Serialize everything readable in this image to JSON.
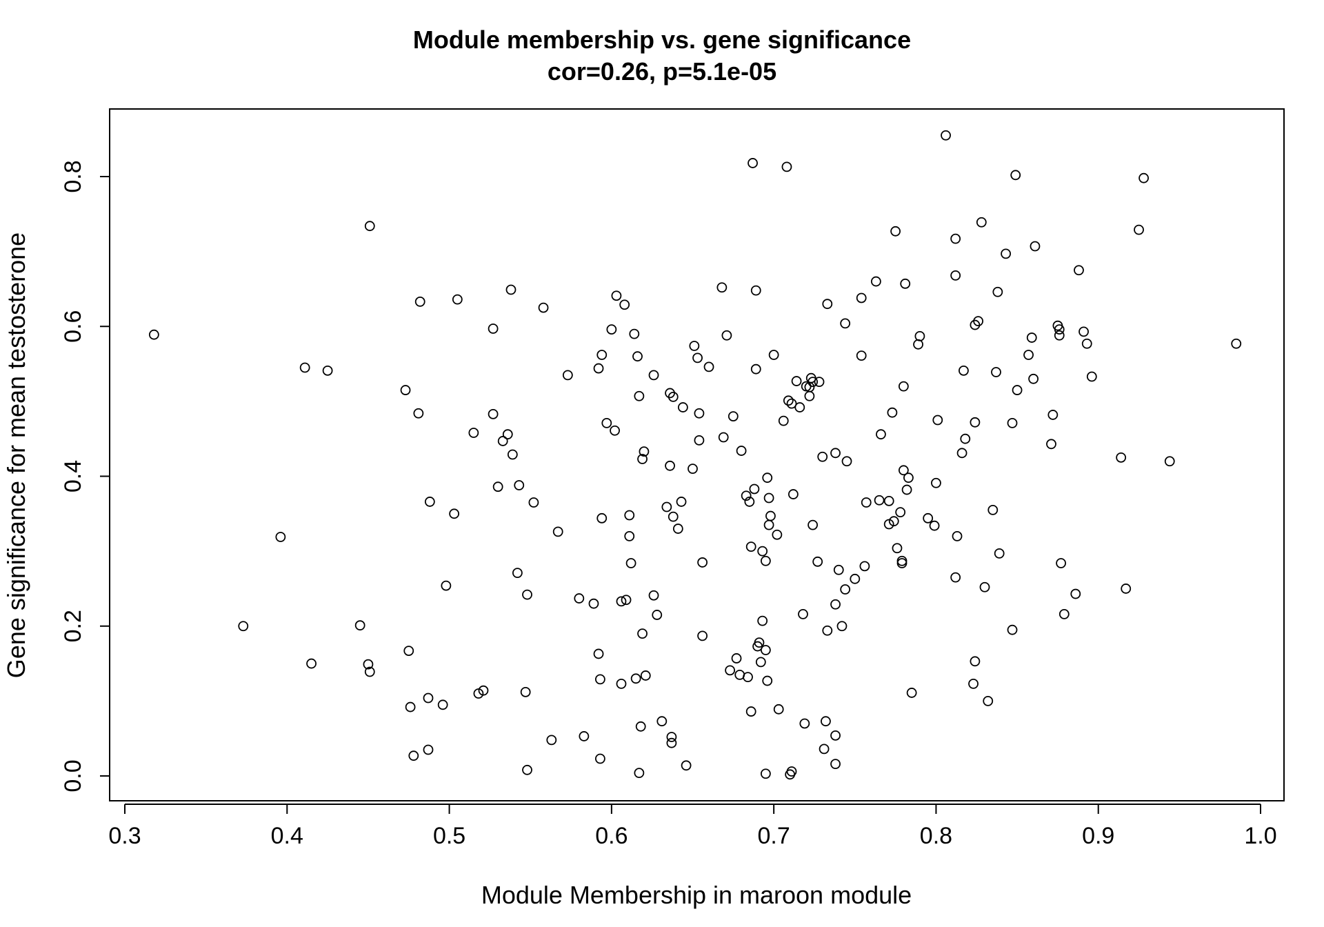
{
  "chart_data": {
    "type": "scatter",
    "title": "Module membership vs. gene significance",
    "subtitle": "cor=0.26, p=5.1e-05",
    "xlabel": "Module Membership in maroon module",
    "ylabel": "Gene significance for mean testosterone",
    "xlim": [
      0.3,
      1.0
    ],
    "ylim": [
      0.0,
      0.8
    ],
    "x_ticks": [
      "0.3",
      "0.4",
      "0.5",
      "0.6",
      "0.7",
      "0.8",
      "0.9",
      "1.0"
    ],
    "y_ticks": [
      "0.0",
      "0.2",
      "0.4",
      "0.6",
      "0.8"
    ],
    "grid": false,
    "marker": "open-circle",
    "points": [
      [
        0.318,
        0.589
      ],
      [
        0.373,
        0.2
      ],
      [
        0.396,
        0.319
      ],
      [
        0.411,
        0.545
      ],
      [
        0.415,
        0.15
      ],
      [
        0.425,
        0.541
      ],
      [
        0.445,
        0.201
      ],
      [
        0.45,
        0.149
      ],
      [
        0.451,
        0.139
      ],
      [
        0.451,
        0.734
      ],
      [
        0.473,
        0.515
      ],
      [
        0.475,
        0.167
      ],
      [
        0.476,
        0.092
      ],
      [
        0.478,
        0.027
      ],
      [
        0.481,
        0.484
      ],
      [
        0.482,
        0.633
      ],
      [
        0.487,
        0.104
      ],
      [
        0.487,
        0.035
      ],
      [
        0.488,
        0.366
      ],
      [
        0.496,
        0.095
      ],
      [
        0.498,
        0.254
      ],
      [
        0.503,
        0.35
      ],
      [
        0.505,
        0.636
      ],
      [
        0.515,
        0.458
      ],
      [
        0.518,
        0.11
      ],
      [
        0.521,
        0.114
      ],
      [
        0.527,
        0.483
      ],
      [
        0.527,
        0.597
      ],
      [
        0.53,
        0.386
      ],
      [
        0.533,
        0.447
      ],
      [
        0.536,
        0.456
      ],
      [
        0.538,
        0.649
      ],
      [
        0.539,
        0.429
      ],
      [
        0.542,
        0.271
      ],
      [
        0.543,
        0.388
      ],
      [
        0.547,
        0.112
      ],
      [
        0.548,
        0.008
      ],
      [
        0.548,
        0.242
      ],
      [
        0.552,
        0.365
      ],
      [
        0.558,
        0.625
      ],
      [
        0.563,
        0.048
      ],
      [
        0.567,
        0.326
      ],
      [
        0.573,
        0.535
      ],
      [
        0.58,
        0.237
      ],
      [
        0.583,
        0.053
      ],
      [
        0.589,
        0.23
      ],
      [
        0.592,
        0.544
      ],
      [
        0.592,
        0.163
      ],
      [
        0.593,
        0.023
      ],
      [
        0.593,
        0.129
      ],
      [
        0.594,
        0.562
      ],
      [
        0.594,
        0.344
      ],
      [
        0.597,
        0.471
      ],
      [
        0.6,
        0.596
      ],
      [
        0.602,
        0.461
      ],
      [
        0.603,
        0.641
      ],
      [
        0.606,
        0.233
      ],
      [
        0.606,
        0.123
      ],
      [
        0.608,
        0.629
      ],
      [
        0.609,
        0.235
      ],
      [
        0.611,
        0.348
      ],
      [
        0.611,
        0.32
      ],
      [
        0.612,
        0.284
      ],
      [
        0.614,
        0.59
      ],
      [
        0.615,
        0.13
      ],
      [
        0.616,
        0.56
      ],
      [
        0.617,
        0.004
      ],
      [
        0.617,
        0.507
      ],
      [
        0.618,
        0.066
      ],
      [
        0.619,
        0.19
      ],
      [
        0.619,
        0.423
      ],
      [
        0.62,
        0.433
      ],
      [
        0.621,
        0.134
      ],
      [
        0.626,
        0.241
      ],
      [
        0.626,
        0.535
      ],
      [
        0.628,
        0.215
      ],
      [
        0.631,
        0.073
      ],
      [
        0.634,
        0.359
      ],
      [
        0.636,
        0.511
      ],
      [
        0.636,
        0.414
      ],
      [
        0.637,
        0.044
      ],
      [
        0.637,
        0.052
      ],
      [
        0.638,
        0.506
      ],
      [
        0.638,
        0.346
      ],
      [
        0.641,
        0.33
      ],
      [
        0.643,
        0.366
      ],
      [
        0.644,
        0.492
      ],
      [
        0.646,
        0.014
      ],
      [
        0.65,
        0.41
      ],
      [
        0.651,
        0.574
      ],
      [
        0.653,
        0.558
      ],
      [
        0.654,
        0.484
      ],
      [
        0.654,
        0.448
      ],
      [
        0.656,
        0.285
      ],
      [
        0.656,
        0.187
      ],
      [
        0.66,
        0.546
      ],
      [
        0.668,
        0.652
      ],
      [
        0.669,
        0.452
      ],
      [
        0.671,
        0.588
      ],
      [
        0.673,
        0.141
      ],
      [
        0.675,
        0.48
      ],
      [
        0.677,
        0.157
      ],
      [
        0.679,
        0.135
      ],
      [
        0.68,
        0.434
      ],
      [
        0.683,
        0.374
      ],
      [
        0.684,
        0.132
      ],
      [
        0.685,
        0.366
      ],
      [
        0.686,
        0.086
      ],
      [
        0.686,
        0.306
      ],
      [
        0.687,
        0.818
      ],
      [
        0.688,
        0.383
      ],
      [
        0.689,
        0.648
      ],
      [
        0.689,
        0.543
      ],
      [
        0.69,
        0.173
      ],
      [
        0.691,
        0.178
      ],
      [
        0.692,
        0.152
      ],
      [
        0.693,
        0.207
      ],
      [
        0.693,
        0.3
      ],
      [
        0.695,
        0.003
      ],
      [
        0.695,
        0.168
      ],
      [
        0.695,
        0.287
      ],
      [
        0.696,
        0.127
      ],
      [
        0.696,
        0.398
      ],
      [
        0.697,
        0.371
      ],
      [
        0.697,
        0.335
      ],
      [
        0.698,
        0.347
      ],
      [
        0.7,
        0.562
      ],
      [
        0.702,
        0.322
      ],
      [
        0.703,
        0.089
      ],
      [
        0.706,
        0.474
      ],
      [
        0.708,
        0.813
      ],
      [
        0.709,
        0.501
      ],
      [
        0.71,
        0.002
      ],
      [
        0.711,
        0.497
      ],
      [
        0.711,
        0.006
      ],
      [
        0.712,
        0.376
      ],
      [
        0.714,
        0.527
      ],
      [
        0.716,
        0.492
      ],
      [
        0.718,
        0.216
      ],
      [
        0.719,
        0.07
      ],
      [
        0.72,
        0.52
      ],
      [
        0.722,
        0.507
      ],
      [
        0.722,
        0.519
      ],
      [
        0.723,
        0.531
      ],
      [
        0.724,
        0.335
      ],
      [
        0.724,
        0.526
      ],
      [
        0.727,
        0.286
      ],
      [
        0.728,
        0.526
      ],
      [
        0.73,
        0.426
      ],
      [
        0.731,
        0.036
      ],
      [
        0.732,
        0.073
      ],
      [
        0.733,
        0.194
      ],
      [
        0.733,
        0.63
      ],
      [
        0.738,
        0.016
      ],
      [
        0.738,
        0.054
      ],
      [
        0.738,
        0.229
      ],
      [
        0.738,
        0.431
      ],
      [
        0.74,
        0.275
      ],
      [
        0.742,
        0.2
      ],
      [
        0.744,
        0.604
      ],
      [
        0.744,
        0.249
      ],
      [
        0.745,
        0.42
      ],
      [
        0.75,
        0.263
      ],
      [
        0.754,
        0.561
      ],
      [
        0.754,
        0.638
      ],
      [
        0.756,
        0.28
      ],
      [
        0.757,
        0.365
      ],
      [
        0.763,
        0.66
      ],
      [
        0.765,
        0.368
      ],
      [
        0.766,
        0.456
      ],
      [
        0.771,
        0.367
      ],
      [
        0.771,
        0.336
      ],
      [
        0.773,
        0.485
      ],
      [
        0.774,
        0.34
      ],
      [
        0.775,
        0.727
      ],
      [
        0.776,
        0.304
      ],
      [
        0.778,
        0.352
      ],
      [
        0.779,
        0.287
      ],
      [
        0.779,
        0.284
      ],
      [
        0.78,
        0.408
      ],
      [
        0.78,
        0.52
      ],
      [
        0.781,
        0.657
      ],
      [
        0.782,
        0.382
      ],
      [
        0.783,
        0.398
      ],
      [
        0.785,
        0.111
      ],
      [
        0.789,
        0.576
      ],
      [
        0.79,
        0.587
      ],
      [
        0.795,
        0.344
      ],
      [
        0.799,
        0.334
      ],
      [
        0.8,
        0.391
      ],
      [
        0.801,
        0.475
      ],
      [
        0.806,
        0.855
      ],
      [
        0.812,
        0.717
      ],
      [
        0.812,
        0.668
      ],
      [
        0.812,
        0.265
      ],
      [
        0.813,
        0.32
      ],
      [
        0.816,
        0.431
      ],
      [
        0.817,
        0.541
      ],
      [
        0.818,
        0.45
      ],
      [
        0.823,
        0.123
      ],
      [
        0.824,
        0.153
      ],
      [
        0.824,
        0.602
      ],
      [
        0.824,
        0.472
      ],
      [
        0.826,
        0.607
      ],
      [
        0.828,
        0.739
      ],
      [
        0.83,
        0.252
      ],
      [
        0.832,
        0.1
      ],
      [
        0.835,
        0.355
      ],
      [
        0.837,
        0.539
      ],
      [
        0.838,
        0.646
      ],
      [
        0.839,
        0.297
      ],
      [
        0.843,
        0.697
      ],
      [
        0.847,
        0.471
      ],
      [
        0.847,
        0.195
      ],
      [
        0.849,
        0.802
      ],
      [
        0.85,
        0.515
      ],
      [
        0.857,
        0.562
      ],
      [
        0.859,
        0.585
      ],
      [
        0.86,
        0.53
      ],
      [
        0.861,
        0.707
      ],
      [
        0.871,
        0.443
      ],
      [
        0.872,
        0.482
      ],
      [
        0.875,
        0.601
      ],
      [
        0.876,
        0.596
      ],
      [
        0.876,
        0.588
      ],
      [
        0.877,
        0.284
      ],
      [
        0.879,
        0.216
      ],
      [
        0.886,
        0.243
      ],
      [
        0.888,
        0.675
      ],
      [
        0.891,
        0.593
      ],
      [
        0.893,
        0.577
      ],
      [
        0.896,
        0.533
      ],
      [
        0.914,
        0.425
      ],
      [
        0.917,
        0.25
      ],
      [
        0.925,
        0.729
      ],
      [
        0.928,
        0.798
      ],
      [
        0.944,
        0.42
      ],
      [
        0.985,
        0.577
      ]
    ]
  }
}
